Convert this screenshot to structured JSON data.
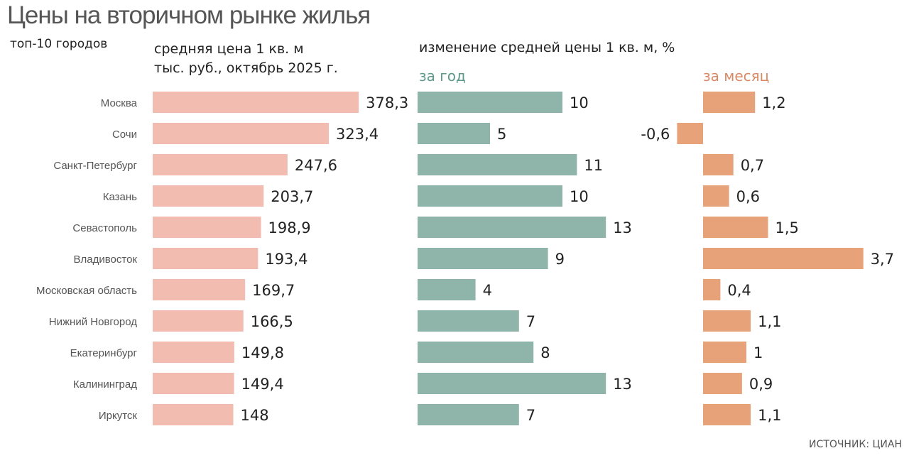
{
  "chart_data": {
    "type": "bar",
    "title": "Цены на вторичном рынке жилья",
    "subtitle": "топ-10 городов",
    "source": "ИСТОЧНИК: ЦИАН",
    "categories": [
      "Москва",
      "Сочи",
      "Санкт-Петербург",
      "Казань",
      "Севастополь",
      "Владивосток",
      "Московская область",
      "Нижний Новгород",
      "Екатеринбург",
      "Калининград",
      "Иркутск"
    ],
    "panels": [
      {
        "header": [
          "средняя цена 1 кв. м",
          "тыс. руб., октябрь 2025 г."
        ],
        "color": "#f2bcb0",
        "values": [
          378.3,
          323.4,
          247.6,
          203.7,
          198.9,
          193.4,
          169.7,
          166.5,
          149.8,
          149.4,
          148
        ],
        "labels": [
          "378,3",
          "323,4",
          "247,6",
          "203,7",
          "198,9",
          "193,4",
          "169,7",
          "166,5",
          "149,8",
          "149,4",
          "148"
        ]
      },
      {
        "group_header": "изменение средней цены 1 кв. м, %",
        "header": [
          "за год"
        ],
        "color": "#8fb5aa",
        "values": [
          10,
          5,
          11,
          10,
          13,
          9,
          4,
          7,
          8,
          13,
          7
        ],
        "labels": [
          "10",
          "5",
          "11",
          "10",
          "13",
          "9",
          "4",
          "7",
          "8",
          "13",
          "7"
        ]
      },
      {
        "header": [
          "за месяц"
        ],
        "color": "#e8a27a",
        "values": [
          1.2,
          -0.6,
          0.7,
          0.6,
          1.5,
          3.7,
          0.4,
          1.1,
          1,
          0.9,
          1.1
        ],
        "labels": [
          "1,2",
          "-0,6",
          "0,7",
          "0,6",
          "1,5",
          "3,7",
          "0,4",
          "1,1",
          "1",
          "0,9",
          "1,1"
        ]
      }
    ]
  }
}
